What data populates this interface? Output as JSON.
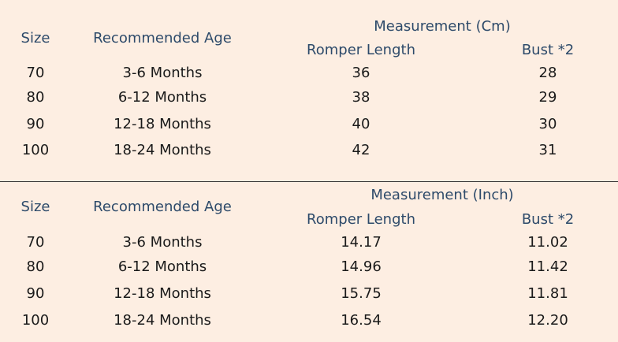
{
  "tables": [
    {
      "headers": {
        "size": "Size",
        "age": "Recommended Age",
        "measurement": "Measurement (Cm)",
        "length": "Romper Length",
        "bust": "Bust *2"
      },
      "rows": [
        {
          "size": "70",
          "age": "3-6 Months",
          "length": "36",
          "bust": "28"
        },
        {
          "size": "80",
          "age": "6-12 Months",
          "length": "38",
          "bust": "29"
        },
        {
          "size": "90",
          "age": "12-18 Months",
          "length": "40",
          "bust": "30"
        },
        {
          "size": "100",
          "age": "18-24 Months",
          "length": "42",
          "bust": "31"
        }
      ]
    },
    {
      "headers": {
        "size": "Size",
        "age": "Recommended Age",
        "measurement": "Measurement (Inch)",
        "length": "Romper Length",
        "bust": "Bust *2"
      },
      "rows": [
        {
          "size": "70",
          "age": "3-6 Months",
          "length": "14.17",
          "bust": "11.02"
        },
        {
          "size": "80",
          "age": "6-12 Months",
          "length": "14.96",
          "bust": "11.42"
        },
        {
          "size": "90",
          "age": "12-18 Months",
          "length": "15.75",
          "bust": "11.81"
        },
        {
          "size": "100",
          "age": "18-24 Months",
          "length": "16.54",
          "bust": "12.20"
        }
      ]
    }
  ]
}
